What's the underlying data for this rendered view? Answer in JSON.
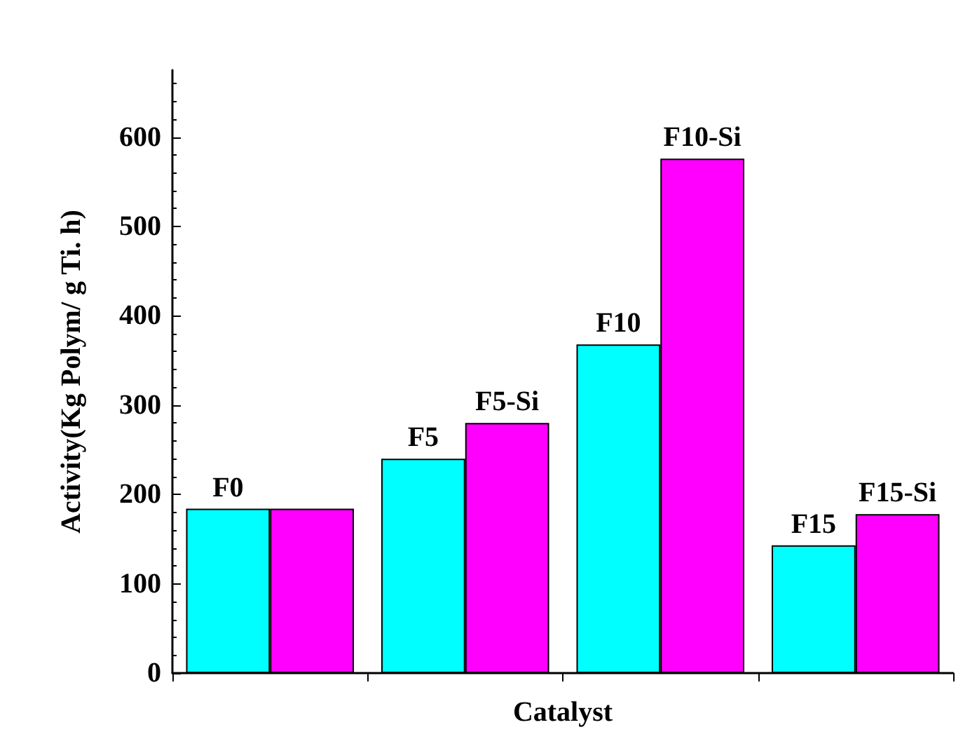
{
  "chart_data": {
    "type": "bar",
    "xlabel": "Catalyst",
    "ylabel": "Activity(Kg Polym/ g Ti. h)",
    "categories": [
      null,
      null,
      null,
      null
    ],
    "series": [
      {
        "color": "#00ffff",
        "values": [
          184,
          240,
          368,
          143
        ],
        "value_labels": [
          "F0",
          "F5",
          "F10",
          "F15"
        ]
      },
      {
        "color": "#ff00ff",
        "values": [
          184,
          280,
          576,
          178
        ],
        "value_labels": [
          null,
          "F5-Si",
          "F10-Si",
          "F15-Si"
        ]
      }
    ],
    "ylim": [
      0,
      675
    ],
    "yticks": [
      0,
      100,
      200,
      300,
      400,
      500,
      600
    ],
    "grid": false
  }
}
